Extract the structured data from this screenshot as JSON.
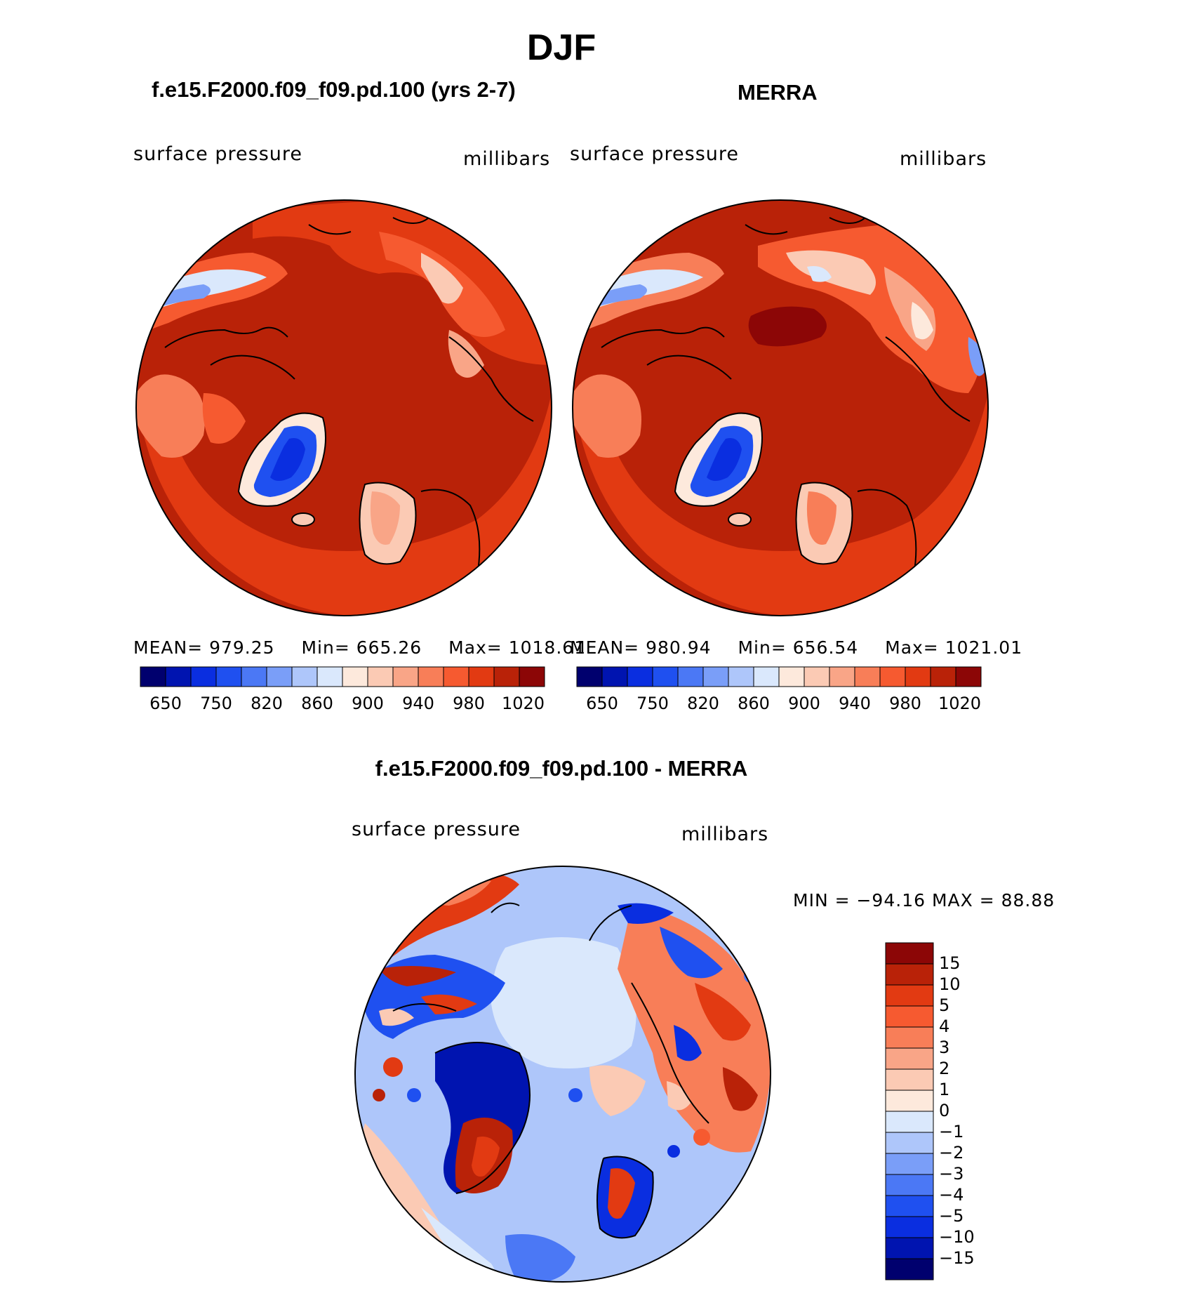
{
  "figure": {
    "title": "DJF"
  },
  "colors": {
    "model_obs_scale": [
      "#00006e",
      "#0014b0",
      "#0a2ee0",
      "#1f50f0",
      "#4b78f5",
      "#7a9ef8",
      "#aec6fa",
      "#dae8fc",
      "#fde9dc",
      "#fbcab4",
      "#f9a587",
      "#f87e58",
      "#f65a30",
      "#e23a12",
      "#b92208",
      "#8c0606"
    ],
    "diff_scale": [
      "#00006e",
      "#0014b0",
      "#0a2ee0",
      "#1f50f0",
      "#4b78f5",
      "#7a9ef8",
      "#aec6fa",
      "#dae8fc",
      "#fde9dc",
      "#fbcab4",
      "#f9a587",
      "#f87e58",
      "#f65a30",
      "#e23a12",
      "#b92208",
      "#8c0606"
    ]
  },
  "panels": [
    {
      "title": "f.e15.F2000.f09_f09.pd.100 (yrs 2-7)",
      "left_label": "surface pressure",
      "right_label": "millibars",
      "stats": {
        "mean_label": "MEAN=",
        "mean": "979.25",
        "min_label": "Min=",
        "min": "665.26",
        "max_label": "Max=",
        "max": "1018.61"
      }
    },
    {
      "title": "MERRA",
      "left_label": "surface pressure",
      "right_label": "millibars",
      "stats": {
        "mean_label": "MEAN=",
        "mean": "980.94",
        "min_label": "Min=",
        "min": "656.54",
        "max_label": "Max=",
        "max": "1021.01"
      }
    }
  ],
  "colorbar_ticks": [
    "650",
    "750",
    "820",
    "860",
    "900",
    "940",
    "980",
    "1020"
  ],
  "difference": {
    "title": "f.e15.F2000.f09_f09.pd.100 - MERRA",
    "left_label": "surface pressure",
    "right_label": "millibars",
    "minmax": "MIN = −94.16 MAX =   88.88",
    "colorbar_ticks": [
      "15",
      "10",
      "5",
      "4",
      "3",
      "2",
      "1",
      "0",
      "−1",
      "−2",
      "−3",
      "−4",
      "−5",
      "−10",
      "−15"
    ]
  }
}
